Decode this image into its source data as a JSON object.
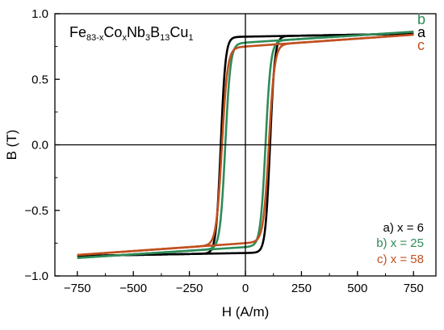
{
  "chart_data": {
    "type": "line",
    "title_parts": [
      {
        "t": "Fe",
        "sub": false
      },
      {
        "t": "83-x",
        "sub": true
      },
      {
        "t": "Co",
        "sub": false
      },
      {
        "t": "x",
        "sub": true
      },
      {
        "t": "Nb",
        "sub": false
      },
      {
        "t": "3",
        "sub": true
      },
      {
        "t": "B",
        "sub": false
      },
      {
        "t": "13",
        "sub": true
      },
      {
        "t": "Cu",
        "sub": false
      },
      {
        "t": "1",
        "sub": true
      }
    ],
    "xlabel": "H (A/m)",
    "ylabel": "B (T)",
    "xlim": [
      -850,
      850
    ],
    "ylim": [
      -1.0,
      1.0
    ],
    "x_ticks": [
      -750,
      -500,
      -250,
      0,
      250,
      500,
      750
    ],
    "x_tick_labels": [
      "−750",
      "−500",
      "−250",
      "0",
      "250",
      "500",
      "750"
    ],
    "y_ticks": [
      -1.0,
      -0.5,
      0.0,
      0.5,
      1.0
    ],
    "y_tick_labels": [
      "−1.0",
      "−0.5",
      "0.0",
      "0.5",
      "1.0"
    ],
    "grid": false,
    "zero_lines": true,
    "legend_position": "bottom-right",
    "series": [
      {
        "name": "a) x = 6",
        "tag": "a",
        "color": "#000000",
        "hc": 110,
        "w": 21,
        "bs": 0.825,
        "k": 3e-05,
        "x": [
          -750,
          -400,
          -200,
          -150,
          -130,
          -120,
          -110,
          -100,
          -90,
          -70,
          -40,
          0,
          40,
          100,
          200,
          400,
          750
        ],
        "y_descending": [
          0.835,
          0.823,
          0.81,
          0.77,
          0.72,
          0.56,
          0.0,
          -0.48,
          -0.6,
          -0.69,
          -0.73,
          -0.755,
          -0.77,
          -0.79,
          -0.81,
          -0.823,
          -0.835
        ],
        "y_ascending": [
          -0.835,
          -0.823,
          -0.81,
          -0.79,
          -0.77,
          -0.755,
          -0.73,
          -0.69,
          -0.6,
          -0.48,
          0.0,
          0.56,
          0.72,
          0.77,
          0.81,
          0.823,
          0.835
        ]
      },
      {
        "name": "b) x = 25",
        "tag": "b",
        "color": "#2e8b57",
        "hc": 90,
        "w": 23,
        "bs": 0.78,
        "k": 0.00011,
        "x": [
          -750,
          -500,
          -250,
          -150,
          -110,
          -100,
          -90,
          -80,
          -60,
          -30,
          0,
          50,
          100,
          200,
          400,
          750
        ],
        "y_descending": [
          0.865,
          0.82,
          0.75,
          0.68,
          0.58,
          0.5,
          0.0,
          -0.4,
          -0.52,
          -0.56,
          -0.59,
          -0.63,
          -0.67,
          -0.7,
          -0.79,
          -0.865
        ],
        "y_ascending": [
          -0.865,
          -0.79,
          -0.7,
          -0.67,
          -0.63,
          -0.59,
          -0.56,
          -0.52,
          -0.4,
          0.0,
          0.5,
          0.58,
          0.68,
          0.75,
          0.82,
          0.865
        ]
      },
      {
        "name": "c) x = 58",
        "tag": "c",
        "color": "#c0501e",
        "hc": 105,
        "w": 25,
        "bs": 0.75,
        "k": 0.00012,
        "x": [
          -750,
          -500,
          -250,
          -150,
          -130,
          -120,
          -110,
          -100,
          -80,
          -40,
          0,
          50,
          100,
          200,
          400,
          750
        ],
        "y_descending": [
          0.83,
          0.79,
          0.72,
          0.65,
          0.56,
          0.47,
          0.0,
          -0.38,
          -0.5,
          -0.55,
          -0.58,
          -0.61,
          -0.64,
          -0.67,
          -0.76,
          -0.83
        ],
        "y_ascending": [
          -0.83,
          -0.76,
          -0.67,
          -0.64,
          -0.61,
          -0.58,
          -0.55,
          -0.5,
          -0.38,
          0.0,
          0.47,
          0.56,
          0.65,
          0.72,
          0.79,
          0.83
        ]
      }
    ]
  }
}
